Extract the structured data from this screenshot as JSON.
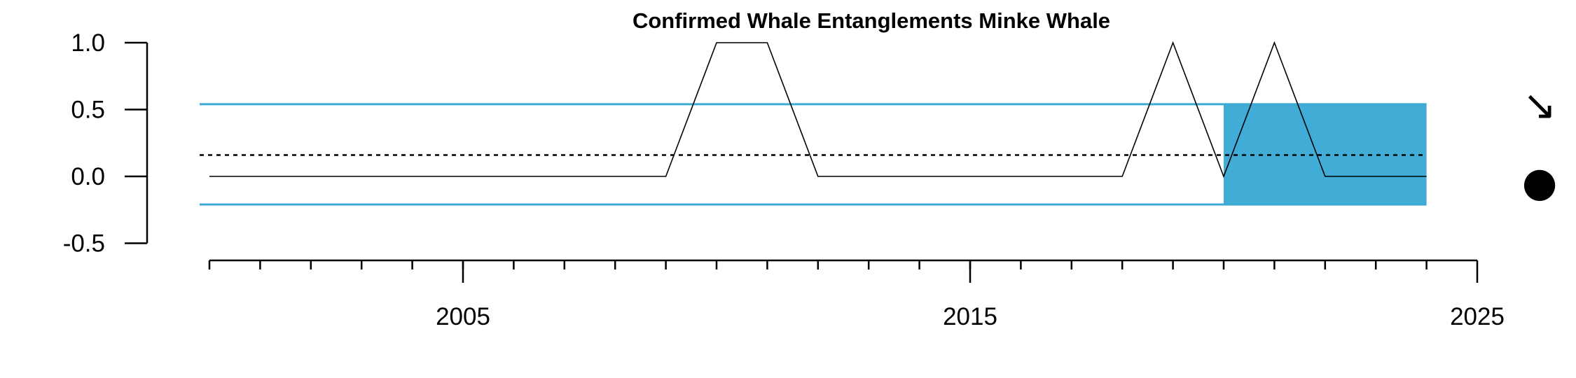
{
  "chart_data": {
    "type": "line",
    "title": "Confirmed Whale Entanglements Minke Whale",
    "xlabel": "",
    "ylabel": "",
    "xlim": [
      2000,
      2025
    ],
    "ylim": [
      -0.5,
      1.0
    ],
    "x_ticks": [
      2005,
      2015,
      2025
    ],
    "y_ticks": [
      1.0,
      0.5,
      0.0,
      -0.5
    ],
    "y_tick_labels": [
      "1.0",
      "0.5",
      "0.0",
      "-0.5"
    ],
    "x_tick_labels": [
      "2005",
      "2015",
      "2025"
    ],
    "series": [
      {
        "x": [
          2000,
          2001,
          2002,
          2003,
          2004,
          2005,
          2006,
          2007,
          2008,
          2009,
          2010,
          2011,
          2012,
          2013,
          2014,
          2015,
          2016,
          2017,
          2018,
          2019,
          2020,
          2021,
          2022,
          2023,
          2024
        ],
        "values": [
          0,
          0,
          0,
          0,
          0,
          0,
          0,
          0,
          0,
          0,
          1,
          1,
          0,
          0,
          0,
          0,
          0,
          0,
          0,
          1,
          0,
          1,
          0,
          0,
          0
        ]
      }
    ],
    "mean": 0.16,
    "upper_sd": 0.54,
    "lower_sd": -0.21,
    "highlight_x": [
      2020,
      2024
    ],
    "trend_symbol": "↘",
    "mean_symbol": "●",
    "colors": {
      "sd_lines": "#3daad4",
      "highlight": "#41acd6",
      "series": "#000000",
      "mean_line": "#000000"
    }
  }
}
